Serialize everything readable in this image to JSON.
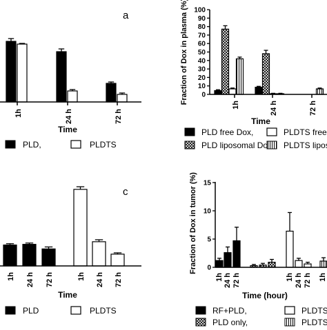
{
  "chart_data": [
    {
      "id": "a",
      "type": "bar",
      "panel_label": "a",
      "xlabel": "Time",
      "categories": [
        "1h",
        "24 h",
        "72 h"
      ],
      "series": [
        {
          "name": "PLD,",
          "fill": "black",
          "values": [
            88,
            73,
            27
          ],
          "errors": [
            4,
            4,
            2
          ]
        },
        {
          "name": "PLDTS",
          "fill": "white",
          "values": [
            84,
            16,
            11
          ],
          "errors": [
            1,
            2,
            2
          ]
        }
      ],
      "legend": {
        "placement": "bottom"
      }
    },
    {
      "id": "b",
      "type": "bar",
      "ylabel": "Fraction of Dox in plasma (%)",
      "xlabel": "Time",
      "ylim": [
        0,
        100
      ],
      "yticks": [
        "0",
        "10",
        "20",
        "30",
        "40",
        "50",
        "60",
        "70",
        "80",
        "90",
        "100"
      ],
      "categories": [
        "1h",
        "24 h",
        "72 h"
      ],
      "series": [
        {
          "name": "PLD free Dox,",
          "fill": "black",
          "values": [
            4.5,
            8.5,
            0
          ],
          "errors": [
            1,
            1,
            0
          ]
        },
        {
          "name": "PLD liposomal Dox,",
          "fill": "crosshatch",
          "values": [
            77,
            48,
            0
          ],
          "errors": [
            4,
            4,
            0
          ]
        },
        {
          "name": "PLDTS free Do",
          "fill": "white",
          "values": [
            6.5,
            0.8,
            0
          ],
          "errors": [
            1,
            0.5,
            0
          ]
        },
        {
          "name": "PLDTS liposom",
          "fill": "vstripe",
          "values": [
            42,
            0.8,
            6.5
          ],
          "errors": [
            2,
            0.5,
            1
          ]
        }
      ],
      "legend": {
        "placement": "bottom"
      }
    },
    {
      "id": "c",
      "type": "bar",
      "panel_label": "c",
      "xlabel": "Time",
      "categories": [
        "1h",
        "24 h",
        "72 h"
      ],
      "series": [
        {
          "name": "PLD",
          "fill": "black",
          "values": [
            32,
            33,
            26
          ],
          "errors": [
            2,
            2,
            3
          ]
        },
        {
          "name": "PLDTS",
          "fill": "white",
          "values": [
            117,
            37,
            18
          ],
          "errors": [
            4,
            3,
            2
          ]
        }
      ],
      "legend": {
        "placement": "bottom"
      }
    },
    {
      "id": "d",
      "type": "bar",
      "ylabel": "Fraction of Dox in tumor  (%)",
      "xlabel": "Time (hour)",
      "ylim": [
        0,
        15
      ],
      "yticks": [
        "0",
        "5",
        "10",
        "15"
      ],
      "group_ticks": [
        "1h",
        "24 h",
        "72 h"
      ],
      "series": [
        {
          "name": "RF+PLD,",
          "fill": "black",
          "values": [
            1.2,
            2.6,
            4.7
          ],
          "errors": [
            0.4,
            1.0,
            2.4
          ]
        },
        {
          "name": "PLD only,",
          "fill": "crosshatch",
          "values": [
            0.3,
            0.4,
            0.9
          ],
          "errors": [
            0.2,
            0.3,
            0.5
          ]
        },
        {
          "name": "PLDTS",
          "fill": "white",
          "values": [
            6.4,
            1.2,
            0.6
          ],
          "errors": [
            3.3,
            0.4,
            0.3
          ]
        },
        {
          "name": "PLDTS",
          "fill": "vstripe",
          "values": [
            1.1,
            0,
            0
          ],
          "errors": [
            0.6,
            0,
            0
          ]
        }
      ],
      "legend": {
        "placement": "bottom"
      }
    }
  ]
}
